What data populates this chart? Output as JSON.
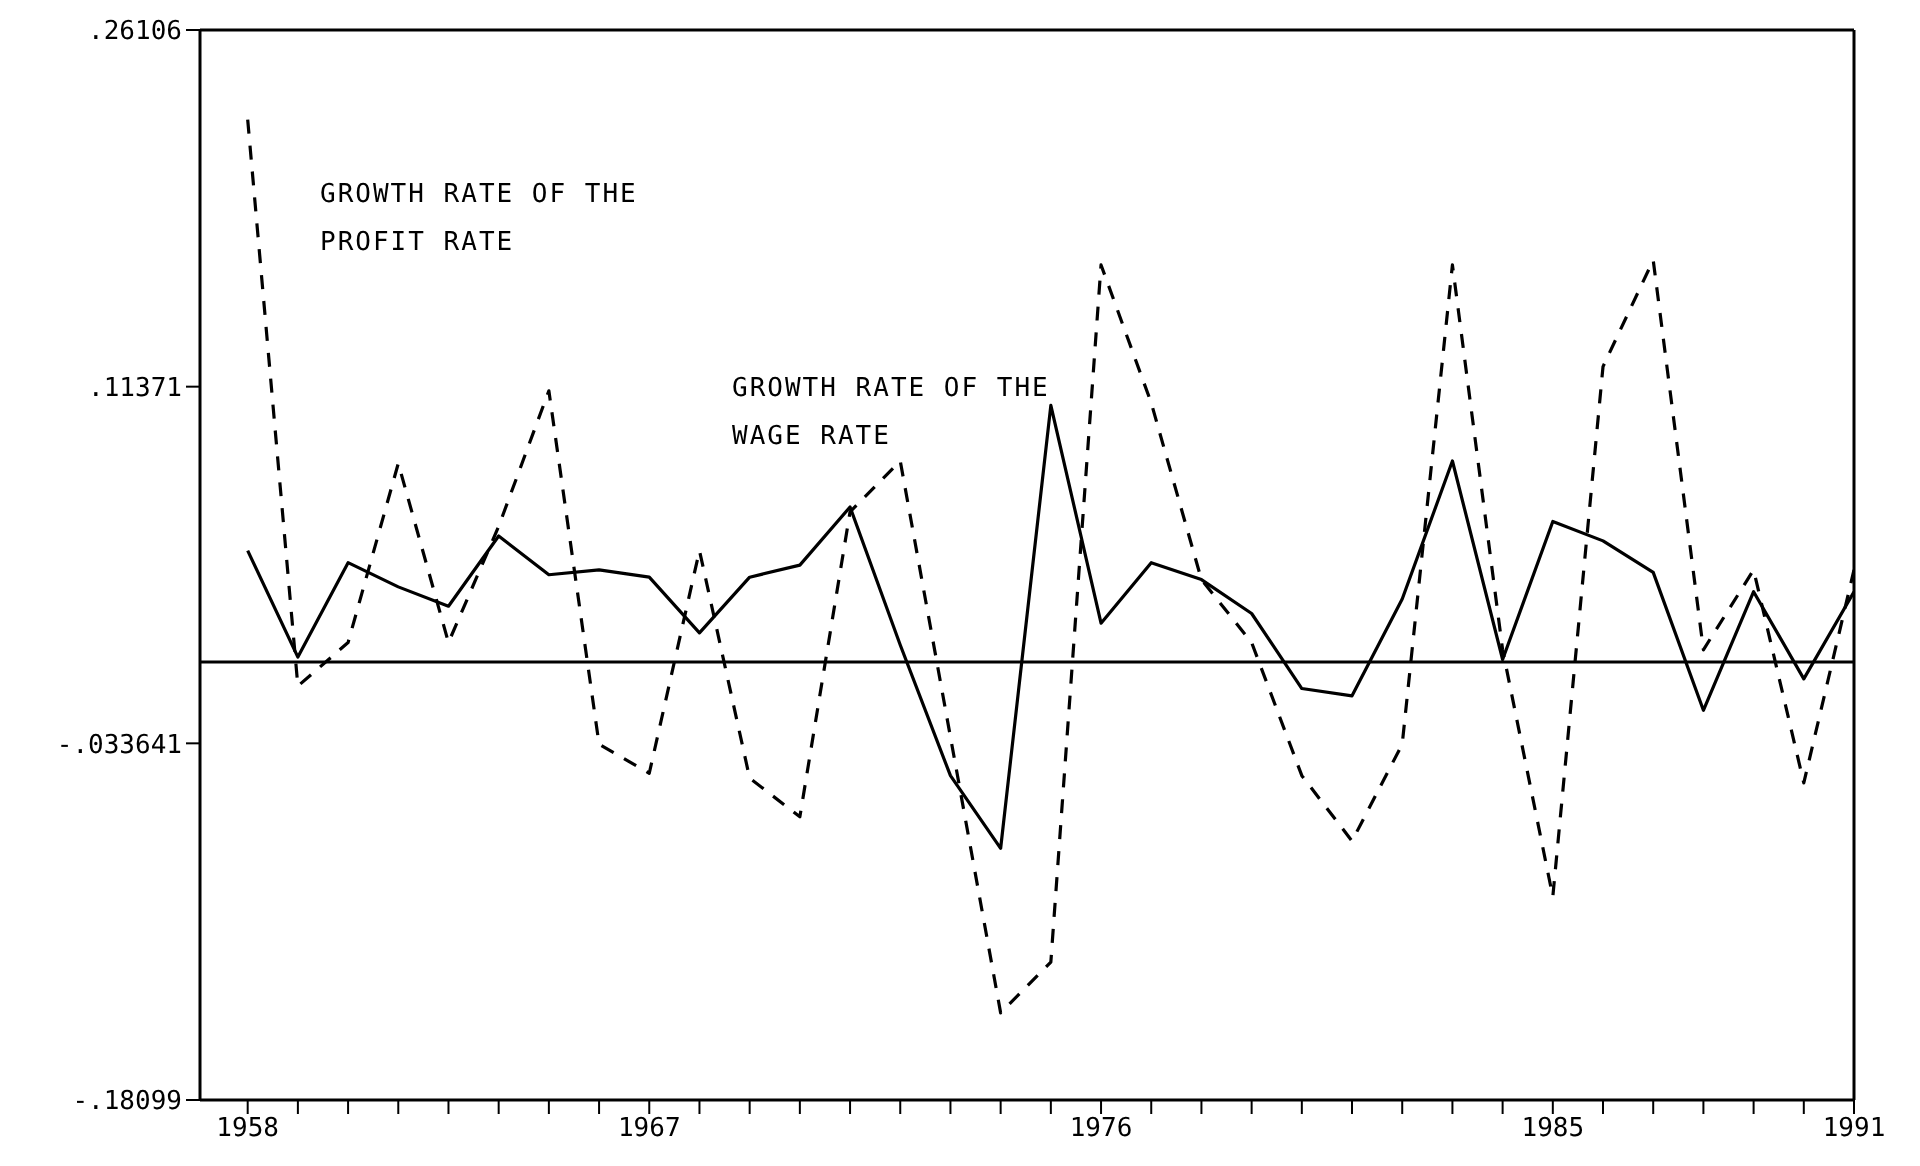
{
  "chart_data": {
    "type": "line",
    "categories": [
      "1958",
      null,
      null,
      null,
      null,
      null,
      null,
      null,
      "1967",
      null,
      null,
      null,
      null,
      null,
      null,
      null,
      null,
      "1976",
      null,
      null,
      null,
      null,
      null,
      null,
      null,
      null,
      "1985",
      null,
      null,
      null,
      null,
      null,
      "1991"
    ],
    "ylim": [
      -0.18099,
      0.26106
    ],
    "yticks": [
      {
        "value": 0.26106,
        "label": ".26106"
      },
      {
        "value": 0.11371,
        "label": ".11371"
      },
      {
        "value": -0.033641,
        "label": "-.033641"
      },
      {
        "value": -0.18099,
        "label": "-.18099"
      }
    ],
    "series": [
      {
        "name": "GROWTH RATE OF THE PROFIT RATE",
        "color": "#000000",
        "line_style": "dashed",
        "values": [
          0.224,
          -0.01,
          0.008,
          0.082,
          0.008,
          0.056,
          0.112,
          -0.034,
          -0.046,
          0.046,
          -0.048,
          -0.064,
          0.062,
          0.083,
          -0.031,
          -0.145,
          -0.124,
          0.164,
          0.107,
          0.034,
          0.008,
          -0.047,
          -0.074,
          -0.034,
          0.164,
          0.005,
          -0.097,
          0.122,
          0.166,
          0.005,
          0.038,
          -0.05,
          0.038
        ]
      },
      {
        "name": "GROWTH RATE OF THE WAGE RATE",
        "color": "#000000",
        "line_style": "solid",
        "values": [
          0.046,
          0.002,
          0.041,
          0.031,
          0.023,
          0.052,
          0.036,
          0.038,
          0.035,
          0.012,
          0.035,
          0.04,
          0.064,
          0.007,
          -0.047,
          -0.077,
          0.106,
          0.016,
          0.041,
          0.034,
          0.02,
          -0.011,
          -0.014,
          0.026,
          0.083,
          0.001,
          0.058,
          0.05,
          0.037,
          -0.02,
          0.029,
          -0.007,
          0.029
        ]
      }
    ],
    "ref_lines": [
      {
        "axis": "y",
        "value": 0,
        "color": "#000000"
      }
    ],
    "grid": false,
    "marker": "none"
  }
}
